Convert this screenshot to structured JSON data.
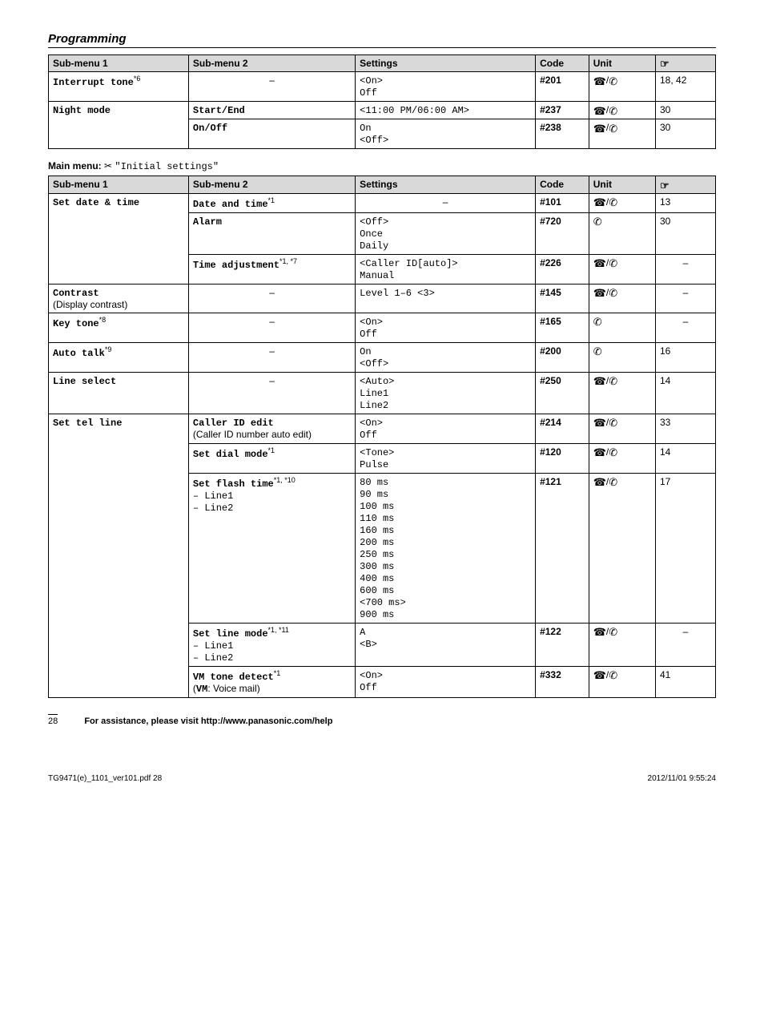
{
  "section_title": "Programming",
  "icons": {
    "base": "☎",
    "handset": "✆",
    "hand": "☞",
    "scissors": "✂"
  },
  "table1": {
    "headers": [
      "Sub-menu 1",
      "Sub-menu 2",
      "Settings",
      "Code",
      "Unit",
      ""
    ],
    "rows": [
      {
        "sm1": "Interrupt tone",
        "sup1": "*6",
        "sm2": "–",
        "settings": "<On>\nOff",
        "code": "#201",
        "unit": "both",
        "page": "18, 42",
        "rowspan_sm1": 1
      },
      {
        "sm1": "Night mode",
        "sup1": "",
        "sm2": "Start/End",
        "settings": "<11:00 PM/06:00 AM>",
        "code": "#237",
        "unit": "both",
        "page": "30",
        "rowspan_sm1": 2
      },
      {
        "sm1": "",
        "sup1": "",
        "sm2": "On/Off",
        "settings": "On\n<Off>",
        "code": "#238",
        "unit": "both",
        "page": "30"
      }
    ]
  },
  "main_menu_label": "Main menu:",
  "main_menu_text": "\"Initial settings\"",
  "table2": {
    "headers": [
      "Sub-menu 1",
      "Sub-menu 2",
      "Settings",
      "Code",
      "Unit",
      ""
    ],
    "rows": [
      {
        "sm1": "Set date & time",
        "rowspan_sm1": 3,
        "sm2": "Date and time",
        "sup2": "*1",
        "settings": "–",
        "settings_center": true,
        "code": "#101",
        "unit": "both",
        "page": "13"
      },
      {
        "sm2": "Alarm",
        "settings": "<Off>\nOnce\nDaily",
        "code": "#720",
        "unit": "handset",
        "page": "30"
      },
      {
        "sm2": "Time adjustment",
        "sup2": "*1, *7",
        "settings": "<Caller ID[auto]>\nManual",
        "code": "#226",
        "unit": "both",
        "page": "–"
      },
      {
        "sm1": "Contrast",
        "sub1_extra": "(Display contrast)",
        "rowspan_sm1": 1,
        "sm2": "–",
        "settings": "Level 1–6 <3>",
        "code": "#145",
        "unit": "both",
        "page": "–"
      },
      {
        "sm1": "Key tone",
        "sup1": "*8",
        "rowspan_sm1": 1,
        "sm2": "–",
        "settings": "<On>\nOff",
        "code": "#165",
        "unit": "handset",
        "page": "–"
      },
      {
        "sm1": "Auto talk",
        "sup1": "*9",
        "rowspan_sm1": 1,
        "sm2": "–",
        "settings": "On\n<Off>",
        "code": "#200",
        "unit": "handset",
        "page": "16"
      },
      {
        "sm1": "Line select",
        "rowspan_sm1": 1,
        "sm2": "–",
        "settings": "<Auto>\nLine1\nLine2",
        "code": "#250",
        "unit": "both",
        "page": "14"
      },
      {
        "sm1": "Set tel line",
        "rowspan_sm1": 5,
        "sm2": "Caller ID edit",
        "sub2_extra": "(Caller ID number auto edit)",
        "settings": "<On>\nOff",
        "code": "#214",
        "unit": "both",
        "page": "33"
      },
      {
        "sm2": "Set dial mode",
        "sup2": "*1",
        "settings": "<Tone>\nPulse",
        "code": "#120",
        "unit": "both",
        "page": "14"
      },
      {
        "sm2": "Set flash time",
        "sup2": "*1, *10",
        "sub2_lines": [
          "– Line1",
          "– Line2"
        ],
        "settings": "80 ms\n90 ms\n100 ms\n110 ms\n160 ms\n200 ms\n250 ms\n300 ms\n400 ms\n600 ms\n<700 ms>\n900 ms",
        "code": "#121",
        "unit": "both",
        "page": "17"
      },
      {
        "sm2": "Set line mode",
        "sup2": "*1, *11",
        "sub2_lines": [
          "– Line1",
          "– Line2"
        ],
        "settings": "A\n<B>",
        "code": "#122",
        "unit": "both",
        "page": "–"
      },
      {
        "sm2": "VM tone detect",
        "sup2": "*1",
        "sub2_extra": "(VM: Voice mail)",
        "sub2_extra_bold": "VM",
        "settings": "<On>\nOff",
        "code": "#332",
        "unit": "both",
        "page": "41"
      }
    ]
  },
  "footer": {
    "page_number": "28",
    "assist_text": "For assistance, please visit http://www.panasonic.com/help",
    "file_meta": "TG9471(e)_1101_ver101.pdf   28",
    "date_meta": "2012/11/01   9:55:24"
  },
  "col_widths": {
    "sm1": "21%",
    "sm2": "25%",
    "settings": "27%",
    "code": "8%",
    "unit": "10%",
    "page": "9%"
  }
}
